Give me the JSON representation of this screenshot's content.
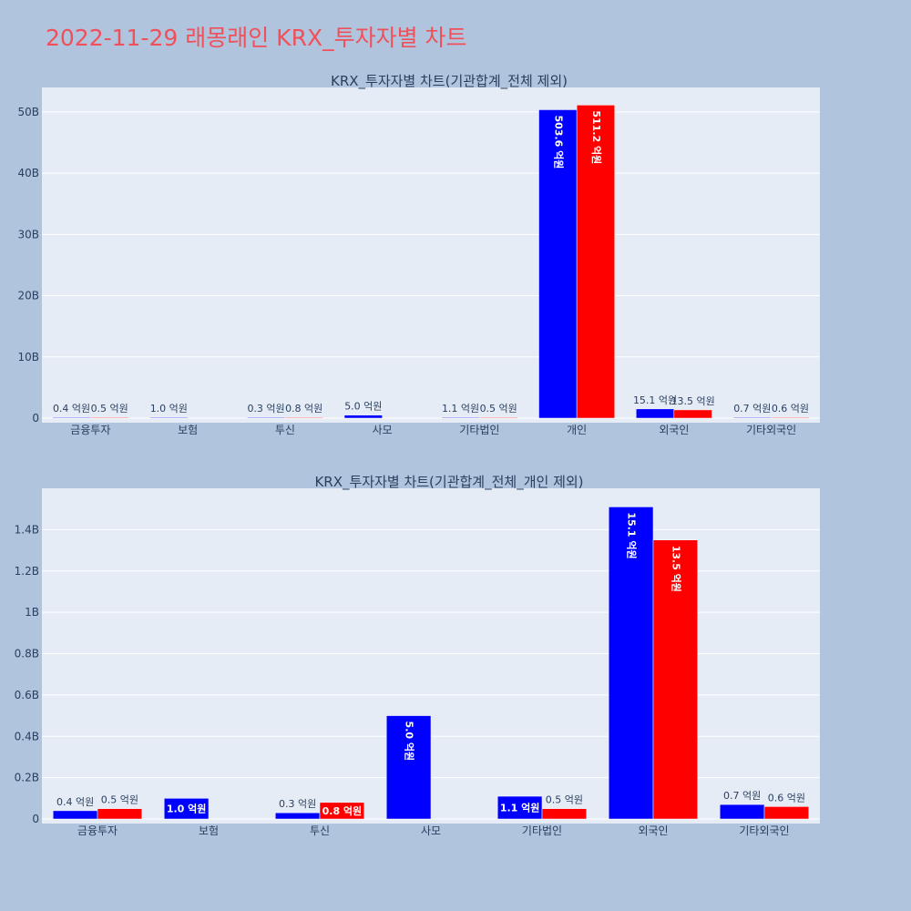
{
  "page_title": "2022-11-29 래몽래인 KRX_투자자별 차트",
  "colors": {
    "series_a": "#0000ff",
    "series_b": "#ff0000",
    "plot_bg": "#e5ecf6",
    "page_bg": "#b0c4de",
    "title": "#f0505a"
  },
  "chart_data": [
    {
      "type": "bar",
      "title": "KRX_투자자별 차트(기관합계_전체 제외)",
      "categories": [
        "금융투자",
        "보험",
        "투신",
        "사모",
        "기타법인",
        "개인",
        "외국인",
        "기타외국인"
      ],
      "series": [
        {
          "values": [
            0.04,
            0.1,
            0.03,
            0.5,
            0.11,
            50.36,
            1.51,
            0.07
          ],
          "labels": [
            "0.4 억원",
            "1.0 억원",
            "0.3 억원",
            "5.0 억원",
            "1.1 억원",
            "503.6 억원",
            "15.1 억원",
            "0.7 억원"
          ]
        },
        {
          "values": [
            0.05,
            null,
            0.08,
            null,
            0.05,
            51.12,
            1.35,
            0.06
          ],
          "labels": [
            "0.5 억원",
            "",
            "0.8 억원",
            "",
            "0.5 억원",
            "511.2 억원",
            "13.5 억원",
            "0.6 억원"
          ]
        }
      ],
      "y_unit": "B",
      "ylim": [
        0,
        54
      ],
      "yticks": [
        0,
        10,
        20,
        30,
        40,
        50
      ],
      "ytick_labels": [
        "0",
        "10B",
        "20B",
        "30B",
        "40B",
        "50B"
      ],
      "grid": true
    },
    {
      "type": "bar",
      "title": "KRX_투자자별 차트(기관합계_전체_개인 제외)",
      "categories": [
        "금융투자",
        "보험",
        "투신",
        "사모",
        "기타법인",
        "외국인",
        "기타외국인"
      ],
      "series": [
        {
          "values": [
            0.04,
            0.1,
            0.03,
            0.5,
            0.11,
            1.51,
            0.07
          ],
          "labels": [
            "0.4 억원",
            "1.0 억원",
            "0.3 억원",
            "5.0 억원",
            "1.1 억원",
            "15.1 억원",
            "0.7 억원"
          ]
        },
        {
          "values": [
            0.05,
            null,
            0.08,
            null,
            0.05,
            1.35,
            0.06
          ],
          "labels": [
            "0.5 억원",
            "",
            "0.8 억원",
            "",
            "0.5 억원",
            "13.5 억원",
            "0.6 억원"
          ]
        }
      ],
      "y_unit": "B",
      "ylim": [
        0,
        1.6
      ],
      "yticks": [
        0,
        0.2,
        0.4,
        0.6,
        0.8,
        1,
        1.2,
        1.4
      ],
      "ytick_labels": [
        "0",
        "0.2B",
        "0.4B",
        "0.6B",
        "0.8B",
        "1B",
        "1.2B",
        "1.4B"
      ],
      "grid": true
    }
  ]
}
